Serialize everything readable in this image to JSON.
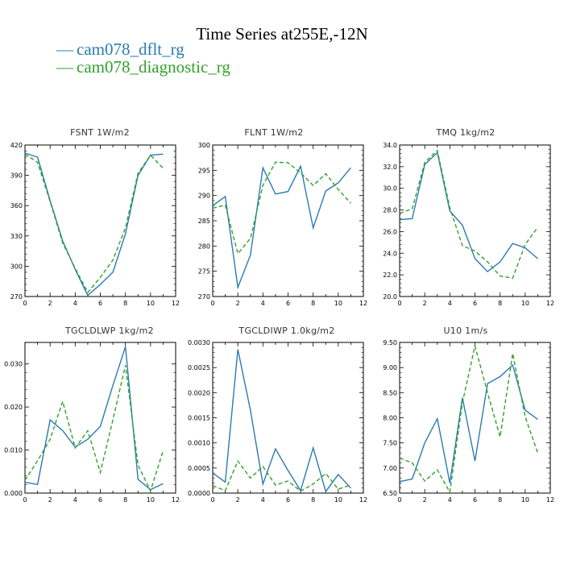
{
  "figure": {
    "title": "Time Series at255E,-12N",
    "legend": [
      {
        "label": "cam078_dflt_rg",
        "color": "#2b7bb1",
        "dash": "none"
      },
      {
        "label": "cam078_diagnostic_rg",
        "color": "#33a02c",
        "dash": "5,3"
      }
    ]
  },
  "chart_data": [
    {
      "type": "line",
      "title": "FSNT  1W/m2",
      "xlim": [
        0,
        12
      ],
      "ylim": [
        270,
        420
      ],
      "xticks": [
        "0",
        "2",
        "4",
        "6",
        "8",
        "10",
        "12"
      ],
      "yticks": [
        "270",
        "300",
        "330",
        "360",
        "390",
        "420"
      ],
      "x": [
        0,
        1,
        2,
        3,
        4,
        5,
        6,
        7,
        8,
        9,
        10,
        11
      ],
      "series": [
        {
          "name": "cam078_dflt_rg",
          "values": [
            412,
            408,
            365,
            325,
            297,
            271,
            282,
            294,
            332,
            390,
            410,
            411
          ]
        },
        {
          "name": "cam078_diagnostic_rg",
          "values": [
            411,
            403,
            364,
            323,
            298,
            274,
            289,
            306,
            338,
            392,
            410,
            397
          ]
        }
      ]
    },
    {
      "type": "line",
      "title": "FLNT  1W/m2",
      "xlim": [
        0,
        12
      ],
      "ylim": [
        270,
        300
      ],
      "xticks": [
        "0",
        "2",
        "4",
        "6",
        "8",
        "10",
        "12"
      ],
      "yticks": [
        "270",
        "275",
        "280",
        "285",
        "290",
        "295",
        "300"
      ],
      "x": [
        0,
        1,
        2,
        3,
        4,
        5,
        6,
        7,
        8,
        9,
        10,
        11
      ],
      "series": [
        {
          "name": "cam078_dflt_rg",
          "values": [
            288.0,
            289.8,
            271.8,
            278.2,
            295.5,
            290.3,
            290.8,
            295.8,
            283.6,
            290.9,
            292.5,
            295.5
          ]
        },
        {
          "name": "cam078_diagnostic_rg",
          "values": [
            287.5,
            288.1,
            278.5,
            281.5,
            292.0,
            296.6,
            296.5,
            294.5,
            292.0,
            294.3,
            291.2,
            288.5
          ]
        }
      ]
    },
    {
      "type": "line",
      "title": "TMQ  1kg/m2",
      "xlim": [
        0,
        12
      ],
      "ylim": [
        20,
        34
      ],
      "xticks": [
        "0",
        "2",
        "4",
        "6",
        "8",
        "10",
        "12"
      ],
      "yticks": [
        "20.0",
        "22.0",
        "24.0",
        "26.0",
        "28.0",
        "30.0",
        "32.0",
        "34.0"
      ],
      "x": [
        0,
        1,
        2,
        3,
        4,
        5,
        6,
        7,
        8,
        9,
        10,
        11
      ],
      "series": [
        {
          "name": "cam078_dflt_rg",
          "values": [
            27.1,
            27.2,
            32.2,
            33.3,
            27.9,
            26.6,
            23.5,
            22.3,
            23.2,
            24.9,
            24.5,
            23.5
          ]
        },
        {
          "name": "cam078_diagnostic_rg",
          "values": [
            27.7,
            28.1,
            32.4,
            33.5,
            28.2,
            24.7,
            24.2,
            23.2,
            21.9,
            21.7,
            24.8,
            26.4
          ]
        }
      ]
    },
    {
      "type": "line",
      "title": "TGCLDLWP  1kg/m2",
      "xlim": [
        0,
        12
      ],
      "ylim": [
        0,
        0.035
      ],
      "xticks": [
        "0",
        "2",
        "4",
        "6",
        "8",
        "10",
        "12"
      ],
      "yticks": [
        "0.000",
        "0.010",
        "0.020",
        "0.030"
      ],
      "x": [
        0,
        1,
        2,
        3,
        4,
        5,
        6,
        7,
        8,
        9,
        10,
        11
      ],
      "series": [
        {
          "name": "cam078_dflt_rg",
          "values": [
            0.0025,
            0.002,
            0.017,
            0.0145,
            0.0107,
            0.0125,
            0.0155,
            0.025,
            0.034,
            0.0032,
            0.0008,
            0.0022
          ]
        },
        {
          "name": "cam078_diagnostic_rg",
          "values": [
            0.003,
            0.0075,
            0.0125,
            0.0213,
            0.0105,
            0.0145,
            0.0048,
            0.017,
            0.0297,
            0.0065,
            0.0005,
            0.0098
          ]
        }
      ]
    },
    {
      "type": "line",
      "title": "TGCLDIWP  1.0kg/m2",
      "xlim": [
        0,
        12
      ],
      "ylim": [
        0,
        0.003
      ],
      "xticks": [
        "0",
        "2",
        "4",
        "6",
        "8",
        "10",
        "12"
      ],
      "yticks": [
        "0.0000",
        "0.0005",
        "0.0010",
        "0.0015",
        "0.0020",
        "0.0025",
        "0.0030"
      ],
      "x": [
        0,
        1,
        2,
        3,
        4,
        5,
        6,
        7,
        8,
        9,
        10,
        11
      ],
      "series": [
        {
          "name": "cam078_dflt_rg",
          "values": [
            0.0004,
            0.00022,
            0.00286,
            0.00165,
            0.00018,
            0.00088,
            0.00045,
            5e-05,
            0.0009,
            3e-05,
            0.00037,
            0.0001
          ]
        },
        {
          "name": "cam078_diagnostic_rg",
          "values": [
            0.00015,
            5e-05,
            0.00064,
            0.0003,
            0.00053,
            0.00016,
            0.00024,
            4e-05,
            0.00018,
            0.00039,
            8e-05,
            0.00016
          ]
        }
      ]
    },
    {
      "type": "line",
      "title": "U10  1m/s",
      "xlim": [
        0,
        12
      ],
      "ylim": [
        6.5,
        9.5
      ],
      "xticks": [
        "0",
        "2",
        "4",
        "6",
        "8",
        "10",
        "12"
      ],
      "yticks": [
        "6.50",
        "7.00",
        "7.50",
        "8.00",
        "8.50",
        "9.00",
        "9.50"
      ],
      "x": [
        0,
        1,
        2,
        3,
        4,
        5,
        6,
        7,
        8,
        9,
        10,
        11
      ],
      "series": [
        {
          "name": "cam078_dflt_rg",
          "values": [
            6.73,
            6.78,
            7.5,
            7.98,
            6.7,
            8.4,
            7.14,
            8.68,
            8.82,
            9.05,
            8.15,
            7.97
          ]
        },
        {
          "name": "cam078_diagnostic_rg",
          "values": [
            7.2,
            7.1,
            6.74,
            6.96,
            6.52,
            8.3,
            9.43,
            8.5,
            7.62,
            9.28,
            8.02,
            7.3
          ]
        }
      ]
    }
  ]
}
